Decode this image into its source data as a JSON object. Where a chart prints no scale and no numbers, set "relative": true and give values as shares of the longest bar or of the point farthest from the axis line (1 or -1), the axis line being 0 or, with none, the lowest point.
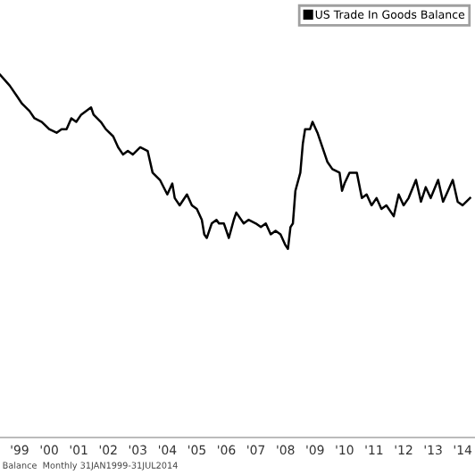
{
  "chart_data": {
    "type": "line",
    "relative": true,
    "x": [
      "1998-11",
      "1999-03",
      "1999-06",
      "1999-08",
      "1999-11",
      "2000-01",
      "2000-04",
      "2000-07",
      "2000-10",
      "2000-12",
      "2001-02",
      "2001-04",
      "2001-06",
      "2001-08",
      "2001-12",
      "2002-01",
      "2002-04",
      "2002-06",
      "2002-09",
      "2002-11",
      "2003-01",
      "2003-03",
      "2003-05",
      "2003-08",
      "2003-11",
      "2004-01",
      "2004-04",
      "2004-07",
      "2004-09",
      "2004-10",
      "2004-12",
      "2005-03",
      "2005-05",
      "2005-07",
      "2005-09",
      "2005-10",
      "2005-11",
      "2006-01",
      "2006-03",
      "2006-04",
      "2006-06",
      "2006-08",
      "2006-10",
      "2006-11",
      "2007-02",
      "2007-04",
      "2007-07",
      "2007-09",
      "2007-11",
      "2008-01",
      "2008-03",
      "2008-05",
      "2008-07",
      "2008-08",
      "2008-09",
      "2008-10",
      "2008-11",
      "2009-01",
      "2009-02",
      "2009-03",
      "2009-05",
      "2009-06",
      "2009-08",
      "2009-10",
      "2009-12",
      "2010-02",
      "2010-05",
      "2010-06",
      "2010-07",
      "2010-09",
      "2010-12",
      "2011-02",
      "2011-04",
      "2011-06",
      "2011-08",
      "2011-10",
      "2011-12",
      "2012-03",
      "2012-05",
      "2012-07",
      "2012-09",
      "2012-12",
      "2013-02",
      "2013-04",
      "2013-06",
      "2013-09",
      "2013-11",
      "2014-01",
      "2014-03",
      "2014-05",
      "2014-07",
      "2014-10"
    ],
    "series": [
      {
        "name": "US Trade In Goods Balance",
        "color": "#000000",
        "values": [
          1.0,
          0.97,
          0.94,
          0.92,
          0.9,
          0.88,
          0.87,
          0.85,
          0.84,
          0.85,
          0.85,
          0.88,
          0.87,
          0.89,
          0.91,
          0.89,
          0.87,
          0.85,
          0.83,
          0.8,
          0.78,
          0.79,
          0.78,
          0.8,
          0.79,
          0.73,
          0.71,
          0.67,
          0.7,
          0.66,
          0.64,
          0.67,
          0.64,
          0.63,
          0.6,
          0.56,
          0.55,
          0.59,
          0.6,
          0.59,
          0.59,
          0.55,
          0.6,
          0.62,
          0.59,
          0.6,
          0.59,
          0.58,
          0.59,
          0.56,
          0.57,
          0.56,
          0.53,
          0.52,
          0.58,
          0.59,
          0.68,
          0.73,
          0.81,
          0.85,
          0.85,
          0.87,
          0.84,
          0.8,
          0.76,
          0.74,
          0.73,
          0.68,
          0.7,
          0.73,
          0.73,
          0.66,
          0.67,
          0.64,
          0.66,
          0.63,
          0.64,
          0.61,
          0.67,
          0.64,
          0.66,
          0.71,
          0.65,
          0.69,
          0.66,
          0.71,
          0.65,
          0.68,
          0.71,
          0.65,
          0.64,
          0.66
        ]
      }
    ],
    "xlim": [
      "1998-11",
      "2014-12"
    ],
    "xticks": [
      {
        "value": "1999-07",
        "label": "'99"
      },
      {
        "value": "2000-07",
        "label": "'00"
      },
      {
        "value": "2001-07",
        "label": "'01"
      },
      {
        "value": "2002-07",
        "label": "'02"
      },
      {
        "value": "2003-07",
        "label": "'03"
      },
      {
        "value": "2004-07",
        "label": "'04"
      },
      {
        "value": "2005-07",
        "label": "'05"
      },
      {
        "value": "2006-07",
        "label": "'06"
      },
      {
        "value": "2007-07",
        "label": "'07"
      },
      {
        "value": "2008-07",
        "label": "'08"
      },
      {
        "value": "2009-07",
        "label": "'09"
      },
      {
        "value": "2010-07",
        "label": "'10"
      },
      {
        "value": "2011-07",
        "label": "'11"
      },
      {
        "value": "2012-07",
        "label": "'12"
      },
      {
        "value": "2013-07",
        "label": "'13"
      },
      {
        "value": "2014-07",
        "label": "'14"
      }
    ],
    "grid": false,
    "legend": "top right",
    "marker": "none",
    "line_style": "solid",
    "annotations": [
      "Balance  Monthly 31JAN1999-31JUL2014"
    ]
  }
}
